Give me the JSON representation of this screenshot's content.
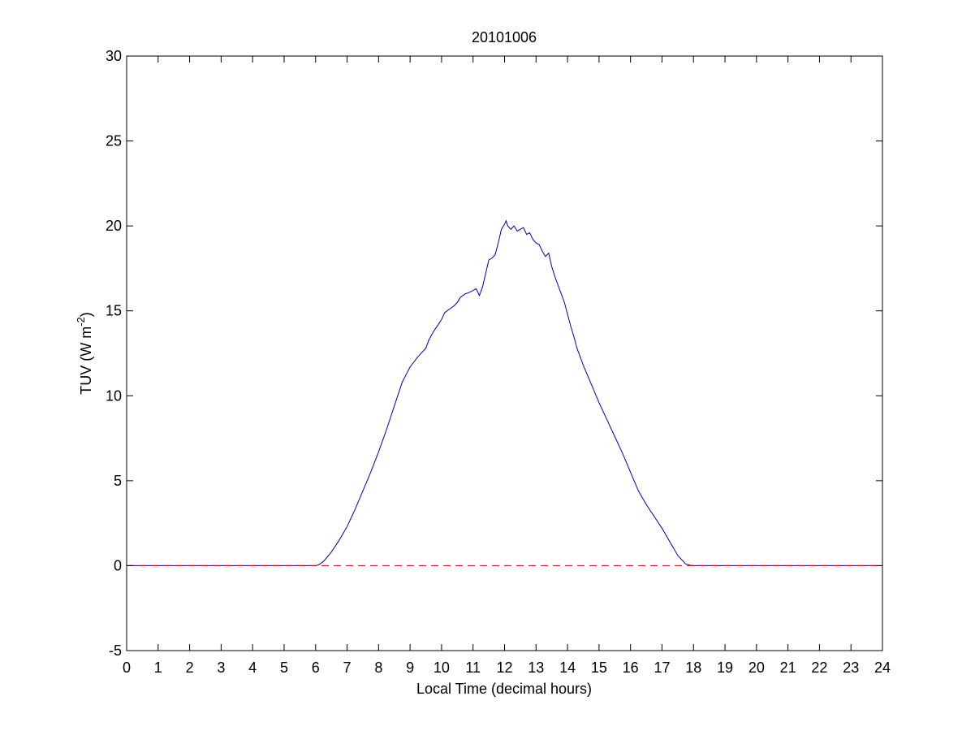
{
  "chart_data": {
    "type": "line",
    "title": "20101006",
    "xlabel": "Local Time (decimal hours)",
    "ylabel": {
      "base": "TUV (W m",
      "sup": "-2",
      "close": ")"
    },
    "xlim": [
      0,
      24
    ],
    "ylim": [
      -5,
      30
    ],
    "xticks": [
      0,
      1,
      2,
      3,
      4,
      5,
      6,
      7,
      8,
      9,
      10,
      11,
      12,
      13,
      14,
      15,
      16,
      17,
      18,
      19,
      20,
      21,
      22,
      23,
      24
    ],
    "yticks": [
      -5,
      0,
      5,
      10,
      15,
      20,
      25,
      30
    ],
    "grid": false,
    "legend": "none",
    "series": [
      {
        "color": "#0000aa",
        "style": "solid",
        "x": [
          0,
          6.0,
          6.1,
          6.25,
          6.5,
          6.75,
          7.0,
          7.25,
          7.5,
          7.75,
          8.0,
          8.25,
          8.5,
          8.75,
          9.0,
          9.25,
          9.5,
          9.6,
          9.75,
          9.9,
          10.0,
          10.1,
          10.25,
          10.4,
          10.5,
          10.6,
          10.75,
          10.9,
          11.0,
          11.1,
          11.2,
          11.3,
          11.4,
          11.5,
          11.6,
          11.7,
          11.8,
          11.9,
          12.0,
          12.05,
          12.1,
          12.2,
          12.3,
          12.4,
          12.5,
          12.6,
          12.7,
          12.8,
          12.9,
          13.0,
          13.1,
          13.2,
          13.3,
          13.4,
          13.5,
          13.6,
          13.7,
          13.8,
          13.9,
          14.0,
          14.1,
          14.2,
          14.3,
          14.4,
          14.5,
          14.75,
          15.0,
          15.25,
          15.5,
          15.75,
          16.0,
          16.25,
          16.5,
          16.75,
          17.0,
          17.25,
          17.5,
          17.75,
          17.9,
          18.0,
          18.1,
          24
        ],
        "y": [
          0,
          0,
          0.05,
          0.25,
          0.8,
          1.5,
          2.3,
          3.3,
          4.4,
          5.5,
          6.7,
          8.0,
          9.4,
          10.8,
          11.7,
          12.3,
          12.8,
          13.3,
          13.8,
          14.2,
          14.5,
          14.9,
          15.1,
          15.3,
          15.5,
          15.8,
          16.0,
          16.1,
          16.2,
          16.3,
          15.9,
          16.4,
          17.2,
          18.0,
          18.1,
          18.3,
          19.0,
          19.8,
          20.1,
          20.3,
          20.0,
          19.8,
          20.0,
          19.7,
          19.8,
          19.9,
          19.5,
          19.6,
          19.2,
          19.0,
          18.9,
          18.5,
          18.2,
          18.4,
          17.6,
          17.0,
          16.5,
          16.0,
          15.5,
          14.8,
          14.1,
          13.5,
          12.8,
          12.3,
          11.8,
          10.7,
          9.6,
          8.6,
          7.6,
          6.6,
          5.5,
          4.4,
          3.6,
          2.9,
          2.2,
          1.4,
          0.6,
          0.1,
          0.02,
          0,
          0,
          0
        ]
      },
      {
        "color": "#cc0000",
        "style": "dashed",
        "x": [
          0,
          24
        ],
        "y": [
          0,
          0
        ]
      }
    ]
  }
}
